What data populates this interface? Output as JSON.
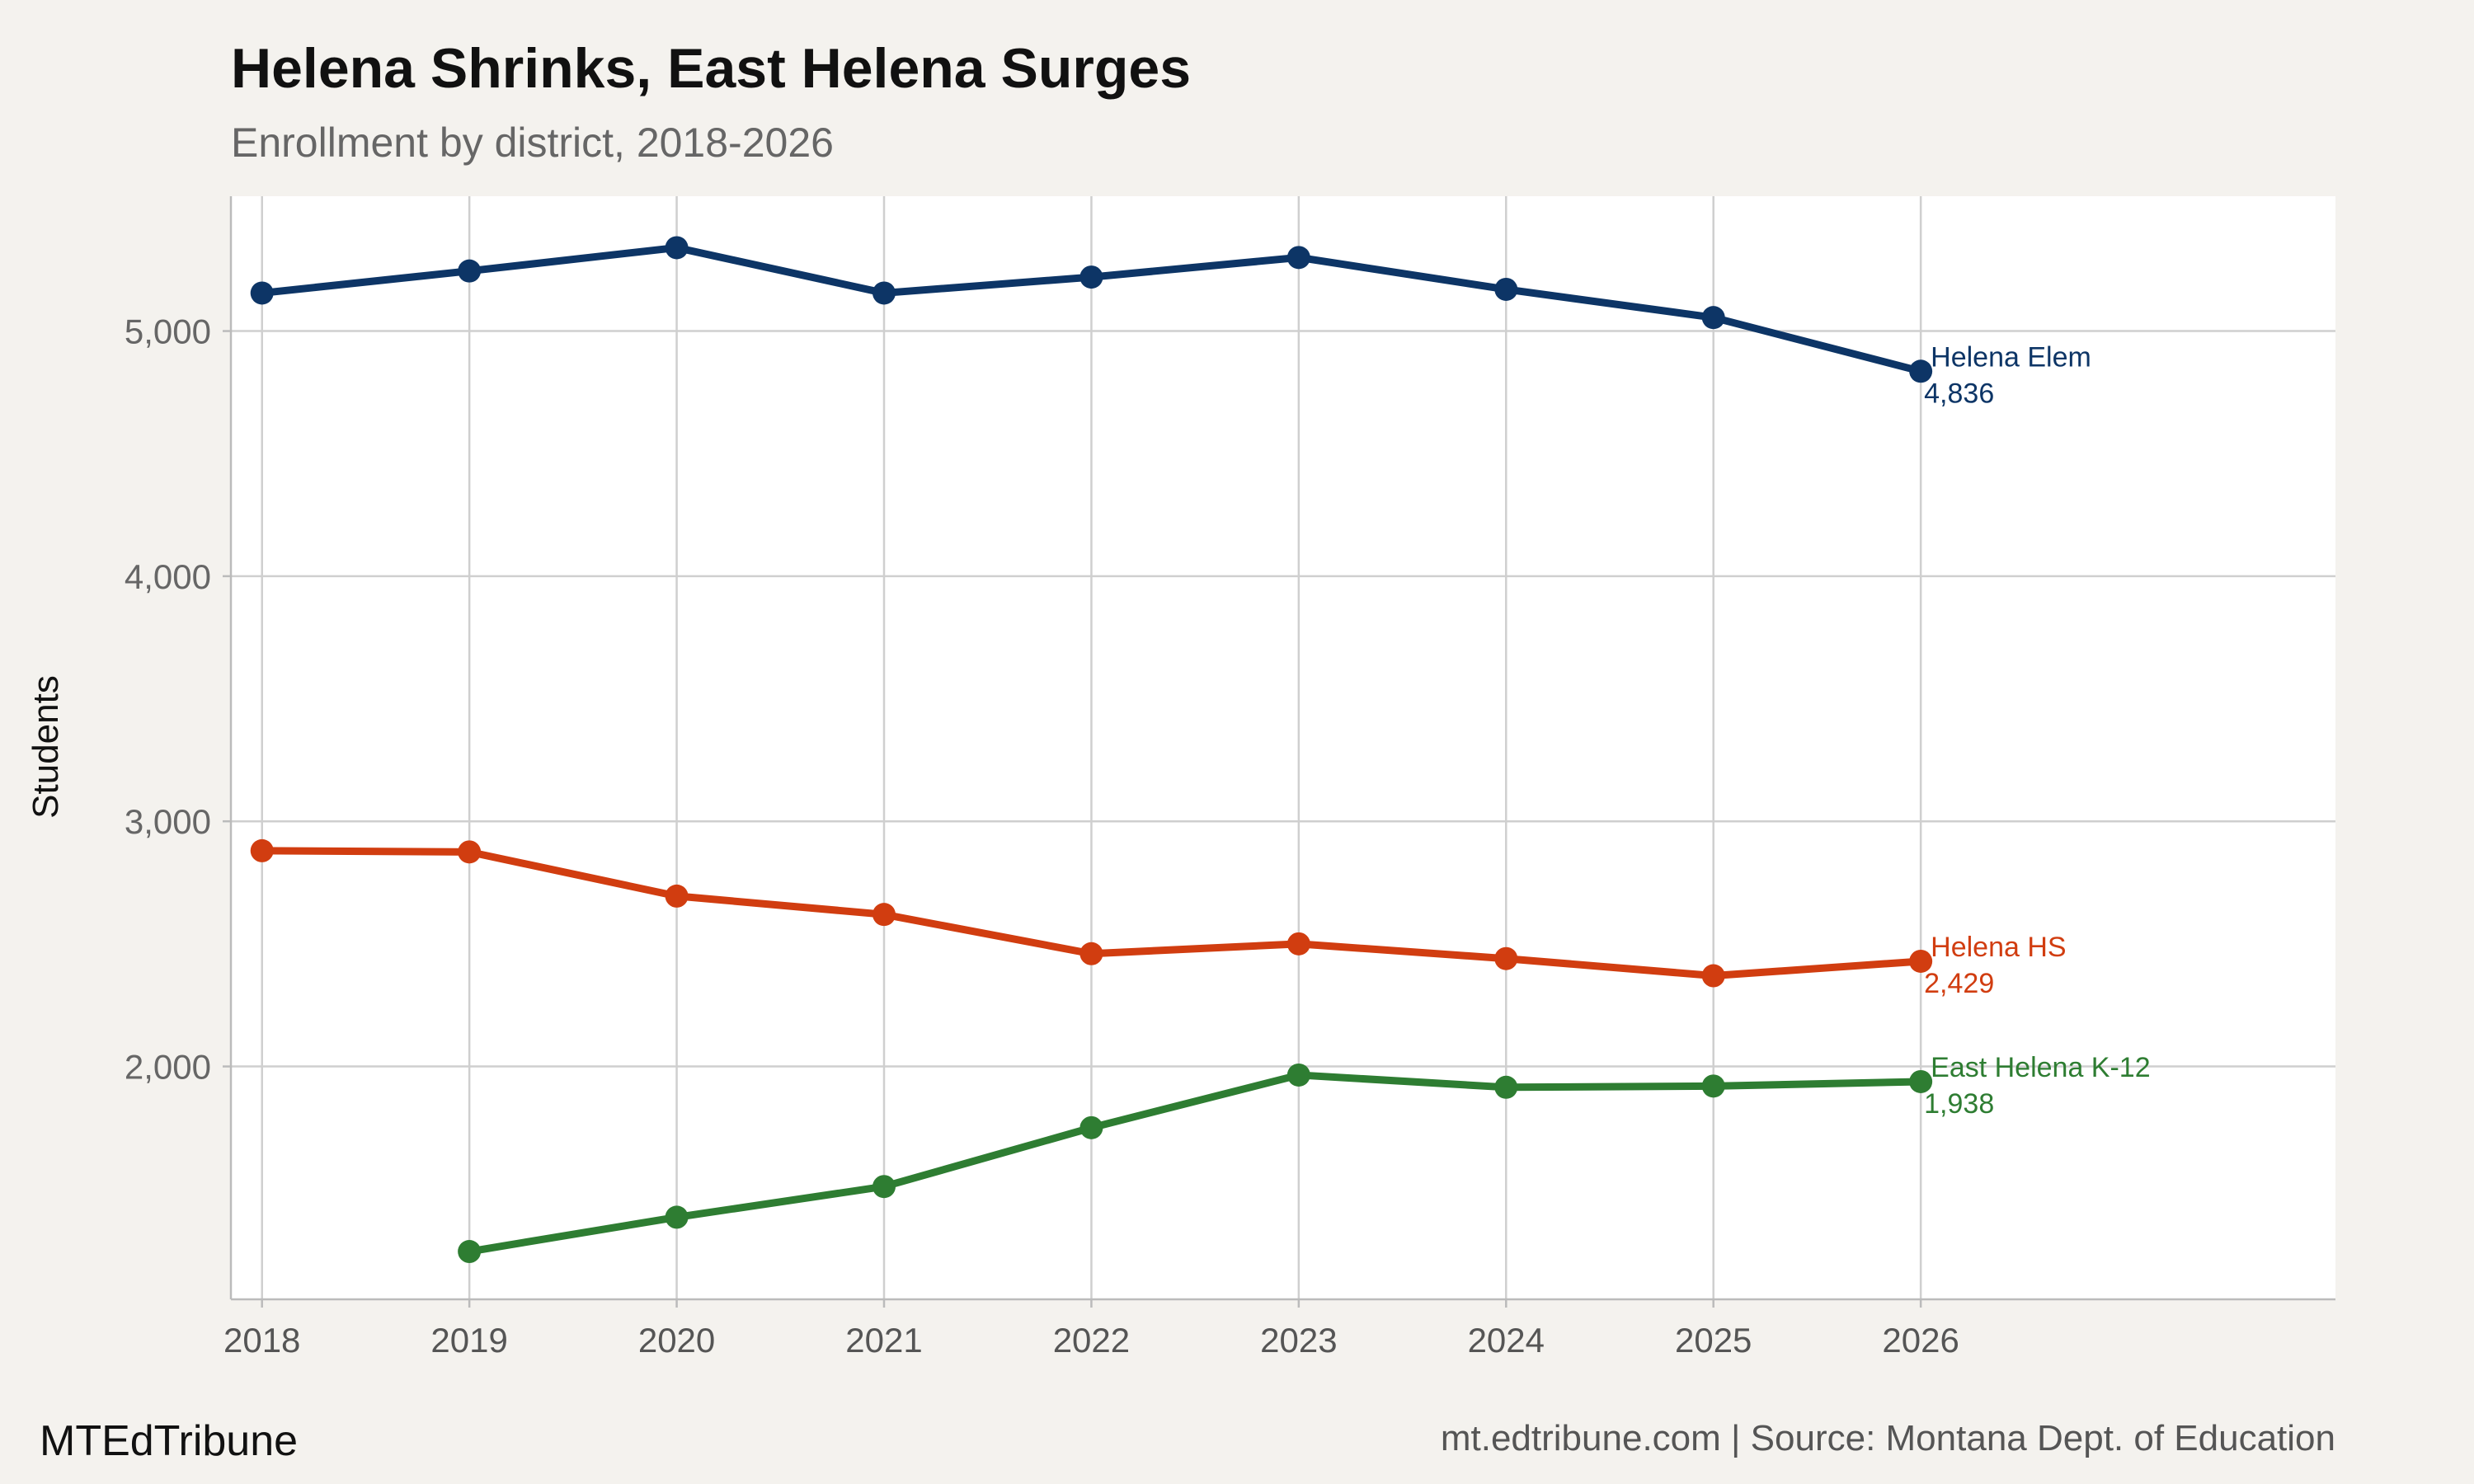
{
  "header": {
    "title": "Helena Shrinks, East Helena Surges",
    "subtitle": "Enrollment by district, 2018-2026"
  },
  "footer": {
    "brand": "MTEdTribune",
    "source": "mt.edtribune.com | Source: Montana Dept. of Education"
  },
  "chart_data": {
    "type": "line",
    "title": "Helena Shrinks, East Helena Surges",
    "subtitle": "Enrollment by district, 2018-2026",
    "xlabel": "",
    "ylabel": "Students",
    "x": [
      2018,
      2019,
      2020,
      2021,
      2022,
      2023,
      2024,
      2025,
      2026
    ],
    "xlim": [
      2017.85,
      2028.0
    ],
    "ylim": [
      1050,
      5550
    ],
    "yticks": [
      2000,
      3000,
      4000,
      5000
    ],
    "ytick_labels": [
      "2,000",
      "3,000",
      "4,000",
      "5,000"
    ],
    "xtick_labels": [
      "2018",
      "2019",
      "2020",
      "2021",
      "2022",
      "2023",
      "2024",
      "2025",
      "2026"
    ],
    "grid": true,
    "legend": "direct labels at line ends",
    "series": [
      {
        "name": "Helena Elem",
        "color": "#0d3566",
        "values": [
          5155,
          5245,
          5340,
          5155,
          5220,
          5300,
          5170,
          5055,
          4836
        ],
        "end_label": "4,836"
      },
      {
        "name": "Helena HS",
        "color": "#d13d10",
        "values": [
          2880,
          2875,
          2695,
          2620,
          2460,
          2500,
          2440,
          2370,
          2429
        ],
        "end_label": "2,429"
      },
      {
        "name": "East Helena K-12",
        "color": "#2e7d32",
        "values": [
          null,
          1245,
          1385,
          1510,
          1750,
          1965,
          1915,
          1920,
          1938
        ],
        "end_label": "1,938"
      }
    ]
  }
}
